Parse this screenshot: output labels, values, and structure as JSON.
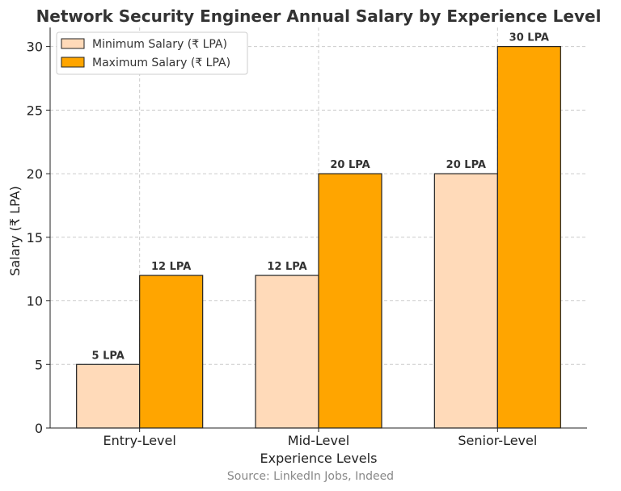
{
  "chart_data": {
    "type": "bar",
    "title": "Network Security Engineer Annual Salary by Experience Level",
    "xlabel": "Experience Levels",
    "ylabel": "Salary (₹ LPA)",
    "categories": [
      "Entry-Level",
      "Mid-Level",
      "Senior-Level"
    ],
    "series": [
      {
        "name": "Minimum Salary (₹ LPA)",
        "values": [
          5,
          12,
          20
        ],
        "labels": [
          "5 LPA",
          "12 LPA",
          "20 LPA"
        ],
        "color": "#FFDAB9"
      },
      {
        "name": "Maximum Salary (₹ LPA)",
        "values": [
          12,
          20,
          30
        ],
        "labels": [
          "12 LPA",
          "20 LPA",
          "30 LPA"
        ],
        "color": "#FFA500"
      }
    ],
    "ylim": [
      0,
      31.5
    ],
    "yticks": [
      0,
      5,
      10,
      15,
      20,
      25,
      30
    ],
    "grid": true,
    "legend_position": "top-left",
    "source": "Source: LinkedIn Jobs, Indeed"
  }
}
